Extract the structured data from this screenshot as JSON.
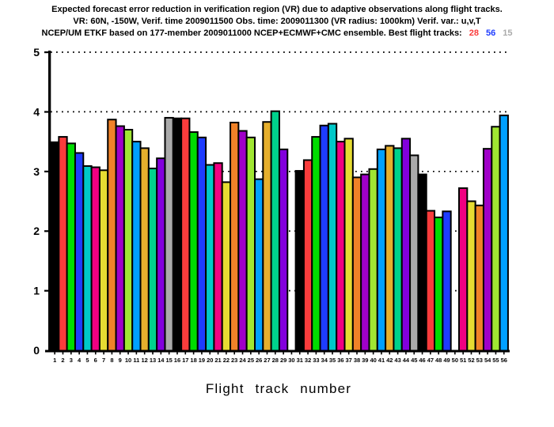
{
  "title": {
    "line1": "Expected forecast error reduction in verification region (VR) due to adaptive observations along flight tracks.",
    "line2": "VR: 60N, -150W, Verif. time 2009011500 Obs. time: 2009011300 (VR radius: 1000km)  Verif. var.: u,v,T",
    "line3": "NCEP/UM ETKF based on 177-member 2009011000 NCEP+ECMWF+CMC ensemble. Best flight tracks:",
    "best_tracks": [
      {
        "label": "28",
        "color": "#fa3c3c"
      },
      {
        "label": "56",
        "color": "#1e3cff"
      },
      {
        "label": "15",
        "color": "#aaaaaa"
      }
    ]
  },
  "chart_data": {
    "type": "bar",
    "xlabel": "Flight track number",
    "ylabel": "",
    "ylim": [
      0,
      5
    ],
    "yticks": [
      0,
      1,
      2,
      3,
      4,
      5
    ],
    "grid": {
      "axis": "y",
      "style": "dotted",
      "at": [
        1,
        2,
        3,
        4,
        5
      ],
      "color": "#000000"
    },
    "legend_position": "none",
    "categories": [
      1,
      2,
      3,
      4,
      5,
      6,
      7,
      8,
      9,
      10,
      11,
      12,
      13,
      14,
      15,
      16,
      17,
      18,
      19,
      20,
      21,
      22,
      23,
      24,
      25,
      26,
      27,
      28,
      29,
      30,
      31,
      32,
      33,
      34,
      35,
      36,
      37,
      38,
      39,
      40,
      41,
      42,
      43,
      44,
      45,
      46,
      47,
      48,
      49,
      50,
      51,
      52,
      53,
      54,
      55,
      56
    ],
    "values": [
      3.49,
      3.58,
      3.47,
      3.31,
      3.09,
      3.07,
      3.02,
      3.87,
      3.76,
      3.7,
      3.5,
      3.39,
      3.05,
      3.22,
      3.9,
      3.89,
      3.89,
      3.66,
      3.57,
      3.11,
      3.14,
      2.82,
      3.82,
      3.68,
      3.57,
      2.87,
      3.83,
      4.01,
      3.37,
      0,
      3.01,
      3.19,
      3.58,
      3.77,
      3.8,
      3.5,
      3.55,
      2.9,
      2.95,
      3.04,
      3.37,
      3.43,
      3.39,
      3.55,
      3.27,
      2.95,
      2.34,
      2.23,
      2.33,
      0,
      2.72,
      2.5,
      2.43,
      3.38,
      3.75,
      3.94
    ],
    "missing_tracks": [
      30,
      50
    ],
    "bar_colors_cycle": [
      "#000000",
      "#fa3c3c",
      "#00dc00",
      "#1e3cff",
      "#00c8c8",
      "#f00082",
      "#e6dc32",
      "#f08228",
      "#a000c8",
      "#a0e632",
      "#00a0ff",
      "#e6af2d",
      "#00d28c",
      "#8200dc",
      "#aaaaaa"
    ],
    "axis_color": "#000000"
  }
}
